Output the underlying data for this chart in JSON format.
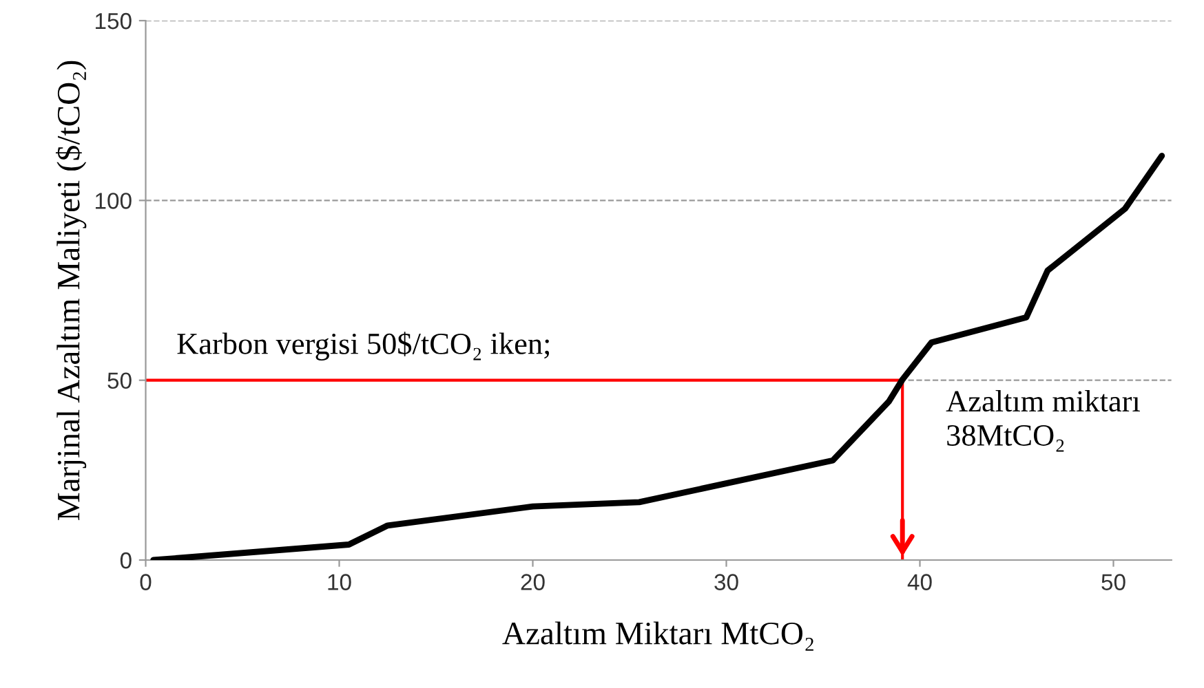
{
  "chart_data": {
    "type": "line",
    "xlabel": "Azaltım Miktarı MtCO₂",
    "ylabel": "Marjinal Azaltım Maliyeti ($/tCO₂)",
    "series": [
      {
        "color": "#000000",
        "x": [
          0.4,
          10.5,
          12.5,
          20,
          25.5,
          35.5,
          38.4,
          39.1,
          40.6,
          45.5,
          46.6,
          50.6,
          52.5
        ],
        "values": [
          0,
          4.3,
          9.6,
          14.9,
          16.1,
          27.7,
          44.1,
          50.2,
          60.5,
          67.5,
          80.5,
          97.7,
          112.4
        ]
      },
      {
        "color": "#ff0000",
        "x": [
          0,
          39.1,
          39.1
        ],
        "values": [
          50,
          50,
          0
        ]
      }
    ],
    "annotations": [
      "Karbon vergisi 50$/tCO₂ iken;",
      "Azaltım miktarı\n38MtCO₂"
    ],
    "xlim": [
      0,
      53
    ],
    "ylim": [
      0,
      150
    ],
    "xticks": [
      0,
      10,
      20,
      30,
      40,
      50
    ],
    "yticks": [
      0,
      50,
      100,
      150
    ],
    "grid": "y",
    "marker": "none",
    "line_style": "solid",
    "legend": false
  }
}
